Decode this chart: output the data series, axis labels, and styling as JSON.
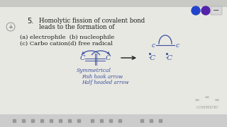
{
  "bg_color": "#e8e8e2",
  "content_bg": "#f0f0ea",
  "title_number": "5.",
  "title_line1": "Homolytic fission of covalent bond",
  "title_line2": "leads to the formation of",
  "options_line1": "(a) electrophile  (b) nucleophile",
  "options_line2": "(c) Carbo cation(d) free radical",
  "text_color": "#1a1a1a",
  "blue_color": "#3a4fa0",
  "dark_blue": "#2a3a90",
  "symmetrical_label": "Symmetrical",
  "note_line1": "Fish hook arrow",
  "note_line2": "Half headed arrow",
  "btn_color1": "#2244cc",
  "btn_color2": "#5522aa",
  "btn3_color": "#d8d8d8",
  "chemistry_color": "#888888",
  "toolbar_color": "#cccccc",
  "title_bar_color": "#c8c8c4"
}
